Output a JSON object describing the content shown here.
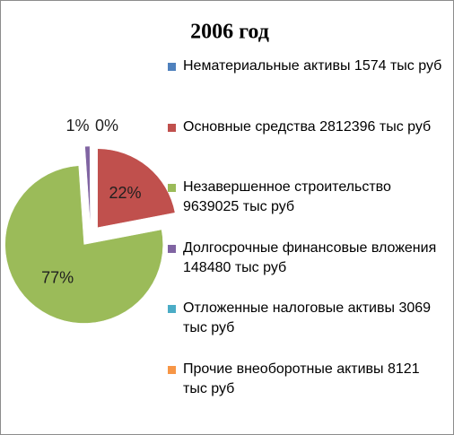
{
  "chart_data": {
    "type": "pie",
    "title": "2006 год",
    "categories": [
      "Нематериальные активы 1574 тыс руб",
      "Основные средства 2812396 тыс руб",
      "Незавершенное строительство 9639025 тыс руб",
      "Долгосрочные финансовые вложения 148480 тыс руб",
      "Отложенные налоговые активы 3069 тыс руб",
      "Прочие внеоборотные активы 8121 тыс руб"
    ],
    "values": [
      0.01,
      22,
      77,
      1,
      0.02,
      0.06
    ],
    "value_labels": [
      "0%",
      "22%",
      "77%",
      "1%",
      null,
      null
    ],
    "colors": [
      "#4f81bd",
      "#c0504d",
      "#9bbb59",
      "#8064a2",
      "#4bacc6",
      "#f79646"
    ],
    "legend": "right"
  }
}
